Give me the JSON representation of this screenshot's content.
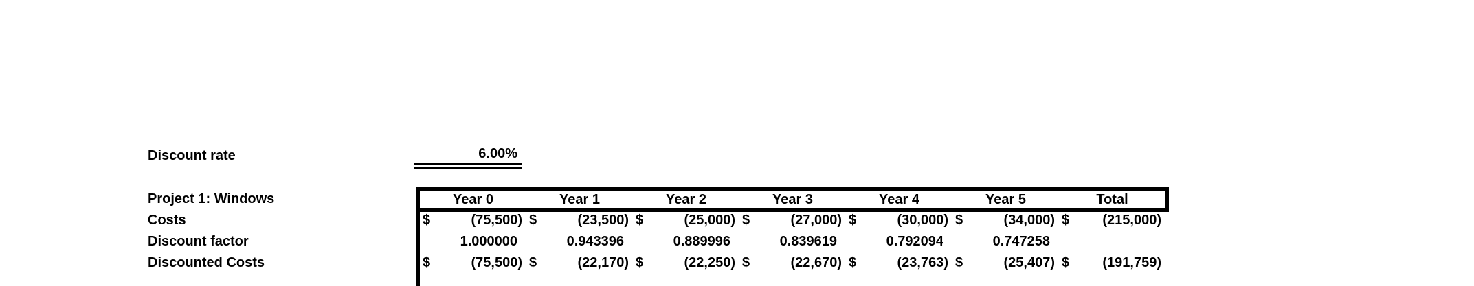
{
  "colors": {
    "text": "#000000",
    "border": "#000000",
    "background": "#ffffff"
  },
  "discount_rate": {
    "label": "Discount rate",
    "value": "6.00%"
  },
  "table": {
    "title": "Project 1: Windows",
    "currency_symbol": "$",
    "columns": [
      "Year 0",
      "Year 1",
      "Year 2",
      "Year 3",
      "Year 4",
      "Year 5",
      "Total"
    ],
    "rows": [
      {
        "label": "Costs",
        "values": [
          "(75,500)",
          "(23,500)",
          "(25,000)",
          "(27,000)",
          "(30,000)",
          "(34,000)",
          "(215,000)"
        ]
      },
      {
        "label": "Discount factor",
        "values": [
          "1.000000",
          "0.943396",
          "0.889996",
          "0.839619",
          "0.792094",
          "0.747258",
          ""
        ]
      },
      {
        "label": "Discounted Costs",
        "values": [
          "(75,500)",
          "(22,170)",
          "(22,250)",
          "(22,670)",
          "(23,763)",
          "(25,407)",
          "(191,759)"
        ]
      }
    ]
  }
}
